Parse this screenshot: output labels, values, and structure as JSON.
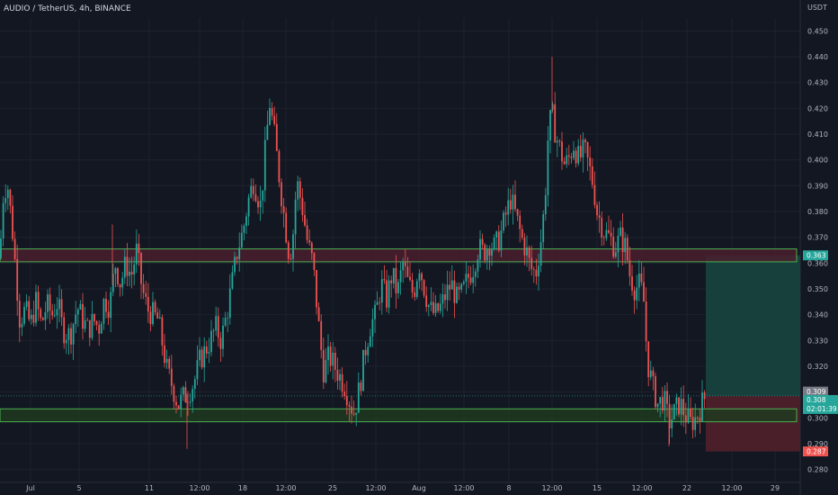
{
  "header": {
    "title": "AUDIO / TetherUS, 4h, BINANCE",
    "currency": "USDT"
  },
  "colors": {
    "background": "#131722",
    "up": "#26a69a",
    "down": "#ef5350",
    "grid": "#1e222d",
    "zone_stroke": "#4caf50",
    "resistance_fill": "#4a1e2e",
    "support_fill": "#1f3a1f",
    "target_fill": "#17403c",
    "stop_fill": "#4a1f2a"
  },
  "chart_data": {
    "type": "candlestick",
    "symbol": "AUDIO / TetherUS",
    "timeframe": "4h",
    "exchange": "BINANCE",
    "y_axis": {
      "min": 0.275,
      "max": 0.455,
      "ticks": [
        0.28,
        0.29,
        0.3,
        0.31,
        0.32,
        0.33,
        0.34,
        0.35,
        0.36,
        0.37,
        0.38,
        0.39,
        0.4,
        0.41,
        0.42,
        0.43,
        0.44,
        0.45
      ]
    },
    "x_ticks": [
      "Jul",
      "5",
      "11",
      "12:00",
      "18",
      "12:00",
      "25",
      "12:00",
      "Aug",
      "12:00",
      "8",
      "12:00",
      "15",
      "12:00",
      "22",
      "12:00",
      "29"
    ],
    "zones": [
      {
        "kind": "resistance",
        "low": 0.3605,
        "high": 0.3655
      },
      {
        "kind": "support",
        "low": 0.2985,
        "high": 0.3035
      }
    ],
    "position": {
      "entry": 0.3085,
      "target": 0.363,
      "stop": 0.287
    },
    "price_labels": {
      "target": "0.363",
      "stop": "0.287",
      "prev": "0.309",
      "last": "0.308",
      "countdown": "02:01:39"
    },
    "close_path": [
      [
        0,
        0.362
      ],
      [
        3,
        0.385
      ],
      [
        8,
        0.392
      ],
      [
        14,
        0.372
      ],
      [
        18,
        0.355
      ],
      [
        22,
        0.338
      ],
      [
        28,
        0.342
      ],
      [
        34,
        0.336
      ],
      [
        40,
        0.345
      ],
      [
        46,
        0.336
      ],
      [
        52,
        0.344
      ],
      [
        58,
        0.34
      ],
      [
        64,
        0.345
      ],
      [
        70,
        0.334
      ],
      [
        78,
        0.332
      ],
      [
        86,
        0.343
      ],
      [
        92,
        0.338
      ],
      [
        98,
        0.334
      ],
      [
        104,
        0.338
      ],
      [
        110,
        0.335
      ],
      [
        116,
        0.346
      ],
      [
        122,
        0.343
      ],
      [
        128,
        0.36
      ],
      [
        134,
        0.352
      ],
      [
        140,
        0.36
      ],
      [
        146,
        0.355
      ],
      [
        152,
        0.365
      ],
      [
        158,
        0.35
      ],
      [
        164,
        0.342
      ],
      [
        170,
        0.34
      ],
      [
        176,
        0.338
      ],
      [
        180,
        0.33
      ],
      [
        186,
        0.318
      ],
      [
        192,
        0.312
      ],
      [
        198,
        0.305
      ],
      [
        204,
        0.308
      ],
      [
        210,
        0.31
      ],
      [
        216,
        0.314
      ],
      [
        222,
        0.322
      ],
      [
        228,
        0.326
      ],
      [
        234,
        0.33
      ],
      [
        240,
        0.335
      ],
      [
        246,
        0.33
      ],
      [
        252,
        0.34
      ],
      [
        258,
        0.352
      ],
      [
        264,
        0.365
      ],
      [
        270,
        0.372
      ],
      [
        276,
        0.384
      ],
      [
        282,
        0.392
      ],
      [
        290,
        0.382
      ],
      [
        296,
        0.408
      ],
      [
        300,
        0.422
      ],
      [
        305,
        0.41
      ],
      [
        310,
        0.395
      ],
      [
        316,
        0.378
      ],
      [
        322,
        0.362
      ],
      [
        326,
        0.372
      ],
      [
        330,
        0.392
      ],
      [
        336,
        0.382
      ],
      [
        342,
        0.368
      ],
      [
        348,
        0.36
      ],
      [
        352,
        0.345
      ],
      [
        356,
        0.33
      ],
      [
        360,
        0.318
      ],
      [
        366,
        0.324
      ],
      [
        372,
        0.32
      ],
      [
        378,
        0.316
      ],
      [
        384,
        0.312
      ],
      [
        390,
        0.305
      ],
      [
        394,
        0.302
      ],
      [
        400,
        0.312
      ],
      [
        406,
        0.326
      ],
      [
        412,
        0.336
      ],
      [
        418,
        0.34
      ],
      [
        424,
        0.352
      ],
      [
        430,
        0.346
      ],
      [
        436,
        0.356
      ],
      [
        442,
        0.348
      ],
      [
        448,
        0.36
      ],
      [
        454,
        0.352
      ],
      [
        460,
        0.348
      ],
      [
        466,
        0.36
      ],
      [
        472,
        0.35
      ],
      [
        478,
        0.342
      ],
      [
        484,
        0.34
      ],
      [
        490,
        0.343
      ],
      [
        496,
        0.348
      ],
      [
        502,
        0.352
      ],
      [
        508,
        0.346
      ],
      [
        514,
        0.348
      ],
      [
        520,
        0.354
      ],
      [
        526,
        0.358
      ],
      [
        532,
        0.366
      ],
      [
        538,
        0.364
      ],
      [
        544,
        0.368
      ],
      [
        550,
        0.366
      ],
      [
        556,
        0.37
      ],
      [
        562,
        0.378
      ],
      [
        568,
        0.385
      ],
      [
        574,
        0.378
      ],
      [
        580,
        0.37
      ],
      [
        586,
        0.364
      ],
      [
        590,
        0.358
      ],
      [
        596,
        0.356
      ],
      [
        602,
        0.37
      ],
      [
        606,
        0.384
      ],
      [
        610,
        0.412
      ],
      [
        614,
        0.418
      ],
      [
        618,
        0.41
      ],
      [
        622,
        0.405
      ],
      [
        628,
        0.398
      ],
      [
        632,
        0.4
      ],
      [
        638,
        0.406
      ],
      [
        644,
        0.4
      ],
      [
        650,
        0.404
      ],
      [
        656,
        0.396
      ],
      [
        660,
        0.39
      ],
      [
        664,
        0.38
      ],
      [
        668,
        0.376
      ],
      [
        672,
        0.372
      ],
      [
        678,
        0.37
      ],
      [
        684,
        0.366
      ],
      [
        690,
        0.37
      ],
      [
        696,
        0.366
      ],
      [
        700,
        0.356
      ],
      [
        706,
        0.35
      ],
      [
        712,
        0.352
      ],
      [
        716,
        0.345
      ],
      [
        720,
        0.322
      ],
      [
        726,
        0.312
      ],
      [
        732,
        0.305
      ],
      [
        738,
        0.308
      ],
      [
        744,
        0.298
      ],
      [
        750,
        0.302
      ],
      [
        756,
        0.306
      ],
      [
        762,
        0.301
      ],
      [
        768,
        0.298
      ],
      [
        774,
        0.3
      ],
      [
        780,
        0.305
      ],
      [
        784,
        0.308
      ]
    ],
    "spikes": [
      [
        208,
        0.288
      ],
      [
        614,
        0.44
      ],
      [
        125,
        0.375
      ],
      [
        744,
        0.289
      ]
    ]
  }
}
